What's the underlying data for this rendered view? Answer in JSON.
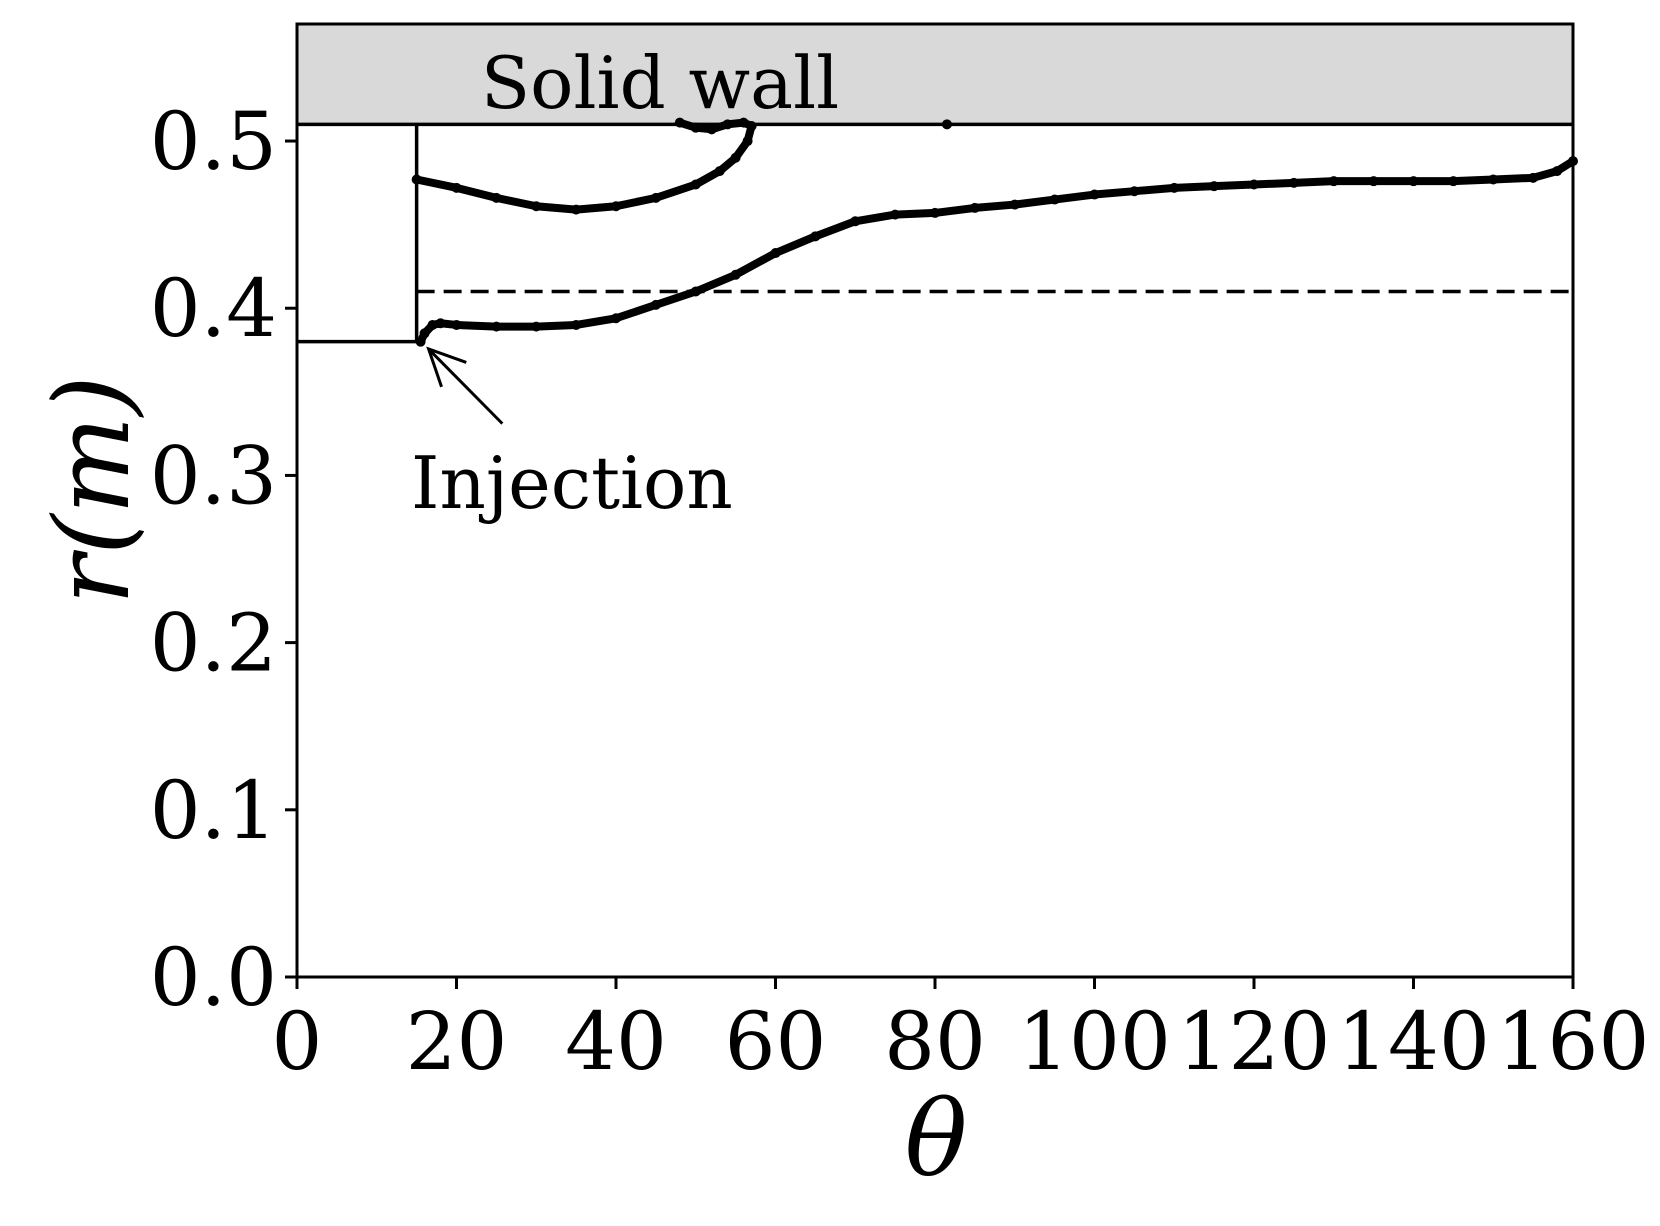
{
  "chart_data": {
    "type": "line",
    "xlabel": "θ",
    "ylabel": "r(m)",
    "xlim": [
      0,
      160
    ],
    "ylim": [
      0,
      0.57
    ],
    "xticks": [
      0,
      20,
      40,
      60,
      80,
      100,
      120,
      140,
      160
    ],
    "yticks": [
      0.0,
      0.1,
      0.2,
      0.3,
      0.4,
      0.5
    ],
    "xtick_labels": [
      "0",
      "20",
      "40",
      "60",
      "80",
      "100",
      "120",
      "140",
      "160"
    ],
    "ytick_labels": [
      "0.0",
      "0.1",
      "0.2",
      "0.3",
      "0.4",
      "0.5"
    ],
    "grid": false,
    "wall": {
      "label": "Solid wall",
      "r_from": 0.51,
      "r_to": 0.57,
      "color": "#d9d9d9"
    },
    "geometry": {
      "step": [
        [
          0,
          0.38
        ],
        [
          15,
          0.38
        ],
        [
          15,
          0.51
        ]
      ],
      "wall_line_r": 0.51
    },
    "reference_line": {
      "r": 0.41,
      "x_from": 15,
      "x_to": 160,
      "style": "dashed"
    },
    "annotation": {
      "text": "Injection",
      "xy": [
        16,
        0.378
      ],
      "xytext": [
        27,
        0.325
      ]
    },
    "series": [
      {
        "points": [
          [
            15.5,
            0.38
          ],
          [
            16,
            0.385
          ],
          [
            17,
            0.39
          ],
          [
            18,
            0.391
          ],
          [
            20,
            0.39
          ],
          [
            25,
            0.389
          ],
          [
            30,
            0.389
          ],
          [
            35,
            0.39
          ],
          [
            40,
            0.394
          ],
          [
            45,
            0.402
          ],
          [
            50,
            0.41
          ],
          [
            55,
            0.42
          ],
          [
            60,
            0.433
          ],
          [
            65,
            0.443
          ],
          [
            70,
            0.452
          ],
          [
            75,
            0.456
          ],
          [
            80,
            0.457
          ],
          [
            85,
            0.46
          ],
          [
            90,
            0.462
          ],
          [
            95,
            0.465
          ],
          [
            100,
            0.468
          ],
          [
            105,
            0.47
          ],
          [
            110,
            0.472
          ],
          [
            115,
            0.473
          ],
          [
            120,
            0.474
          ],
          [
            125,
            0.475
          ],
          [
            130,
            0.476
          ],
          [
            135,
            0.476
          ],
          [
            140,
            0.476
          ],
          [
            145,
            0.476
          ],
          [
            150,
            0.477
          ],
          [
            155,
            0.478
          ],
          [
            158,
            0.482
          ],
          [
            160,
            0.488
          ]
        ]
      },
      {
        "points": [
          [
            15,
            0.477
          ],
          [
            20,
            0.472
          ],
          [
            25,
            0.466
          ],
          [
            30,
            0.461
          ],
          [
            35,
            0.459
          ],
          [
            40,
            0.461
          ],
          [
            45,
            0.466
          ],
          [
            50,
            0.474
          ],
          [
            53,
            0.482
          ],
          [
            55,
            0.49
          ],
          [
            56.5,
            0.5
          ],
          [
            57,
            0.509
          ],
          [
            56,
            0.511
          ],
          [
            54,
            0.51
          ],
          [
            52,
            0.507
          ],
          [
            50,
            0.508
          ],
          [
            48,
            0.511
          ]
        ]
      },
      {
        "points": [
          [
            81.5,
            0.51
          ]
        ]
      }
    ]
  }
}
